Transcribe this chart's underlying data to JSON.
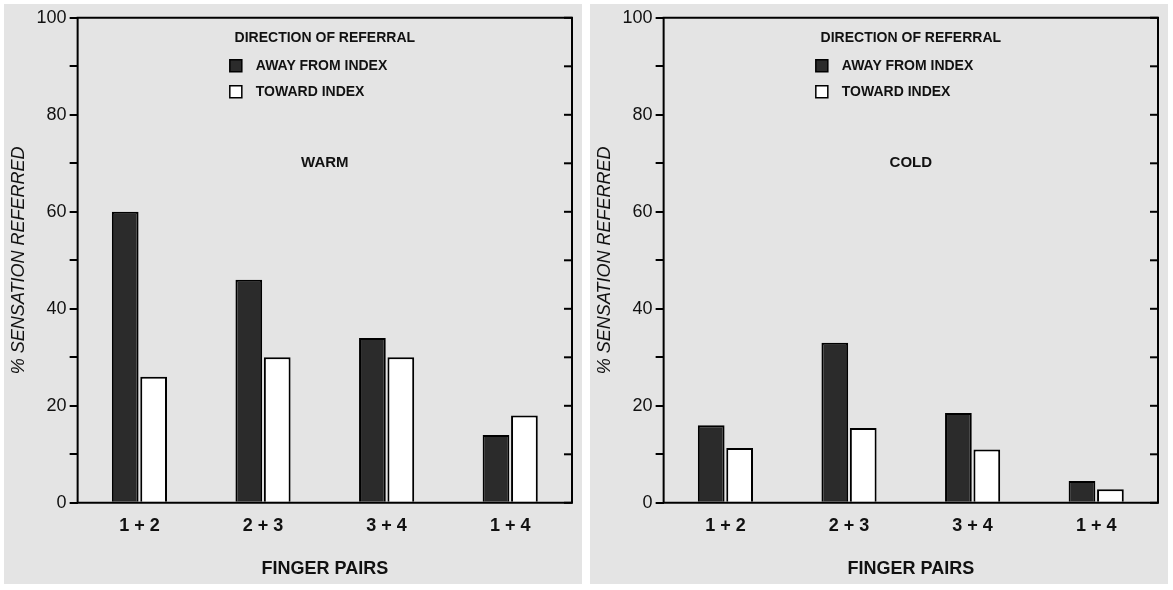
{
  "chart_data": [
    {
      "type": "bar",
      "categories": [
        "1 + 2",
        "2 + 3",
        "3 + 4",
        "1 + 4"
      ],
      "xlabel": "FINGER PAIRS",
      "ylabel": "% SENSATION REFERRED",
      "legend_title": "DIRECTION OF REFERRAL",
      "legend": "top",
      "grid": false,
      "annotations": [
        "WARM"
      ],
      "ylim": [
        0,
        100
      ],
      "yticks": [
        0,
        {
          "value": 10,
          "label": null
        },
        20,
        {
          "value": 30,
          "label": null
        },
        40,
        {
          "value": 50,
          "label": null
        },
        60,
        {
          "value": 70,
          "label": null
        },
        80,
        {
          "value": 90,
          "label": null
        },
        100
      ],
      "series": [
        {
          "name": "AWAY FROM INDEX",
          "color": "#2b2b2b",
          "values": [
            60,
            46,
            34,
            14
          ]
        },
        {
          "name": "TOWARD INDEX",
          "color": "#ffffff",
          "values": [
            26,
            30,
            30,
            18
          ]
        }
      ]
    },
    {
      "type": "bar",
      "categories": [
        "1 + 2",
        "2 + 3",
        "3 + 4",
        "1 + 4"
      ],
      "xlabel": "FINGER PAIRS",
      "ylabel": "% SENSATION REFERRED",
      "legend_title": "DIRECTION OF REFERRAL",
      "legend": "top",
      "grid": false,
      "annotations": [
        "COLD"
      ],
      "ylim": [
        0,
        100
      ],
      "yticks": [
        0,
        {
          "value": 10,
          "label": null
        },
        20,
        {
          "value": 30,
          "label": null
        },
        40,
        {
          "value": 50,
          "label": null
        },
        60,
        {
          "value": 70,
          "label": null
        },
        80,
        {
          "value": 90,
          "label": null
        },
        100
      ],
      "series": [
        {
          "name": "AWAY FROM INDEX",
          "color": "#2b2b2b",
          "values": [
            16,
            33,
            18.5,
            4.5
          ]
        },
        {
          "name": "TOWARD INDEX",
          "color": "#ffffff",
          "values": [
            11.3,
            15.4,
            11,
            2.8
          ]
        }
      ]
    }
  ]
}
